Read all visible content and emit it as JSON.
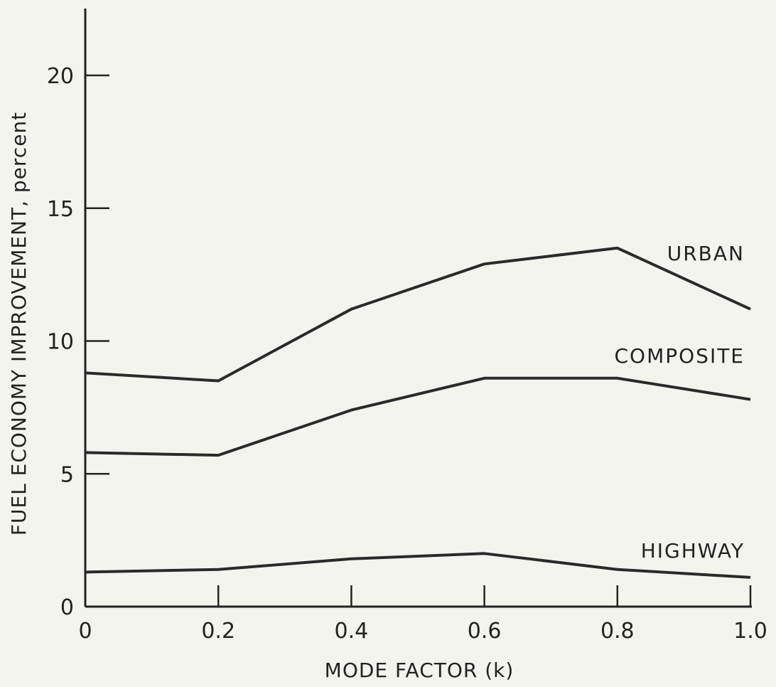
{
  "chart_data": {
    "type": "line",
    "xlabel": "MODE FACTOR (k)",
    "ylabel": "FUEL ECONOMY IMPROVEMENT, percent",
    "xlim": [
      0,
      1.0
    ],
    "ylim": [
      0,
      22
    ],
    "x_ticks": [
      "0",
      "0.2",
      "0.4",
      "0.6",
      "0.8",
      "1.0"
    ],
    "y_ticks": [
      "0",
      "5",
      "10",
      "15",
      "20"
    ],
    "grid": false,
    "x": [
      0,
      0.2,
      0.4,
      0.6,
      0.8,
      1.0
    ],
    "series": [
      {
        "name": "URBAN",
        "values": [
          8.8,
          8.5,
          11.2,
          12.9,
          13.5,
          11.2
        ]
      },
      {
        "name": "COMPOSITE",
        "values": [
          5.8,
          5.7,
          7.4,
          8.6,
          8.6,
          7.8
        ]
      },
      {
        "name": "HIGHWAY",
        "values": [
          1.3,
          1.4,
          1.8,
          2.0,
          1.4,
          1.1
        ]
      }
    ]
  }
}
